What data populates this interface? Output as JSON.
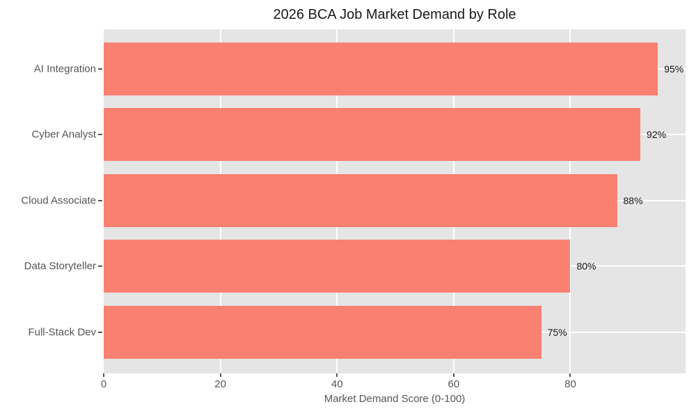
{
  "chart_data": {
    "type": "bar",
    "orientation": "horizontal",
    "title": "2026 BCA Job Market Demand by Role",
    "categories": [
      "AI Integration",
      "Cyber Analyst",
      "Cloud Associate",
      "Data Storyteller",
      "Full-Stack Dev"
    ],
    "values": [
      95,
      92,
      88,
      80,
      75
    ],
    "bar_labels": [
      "95%",
      "92%",
      "88%",
      "80%",
      "75%"
    ],
    "xlabel": "Market Demand Score (0-100)",
    "x_ticks": [
      0,
      20,
      40,
      60,
      80
    ],
    "xlim": [
      0,
      99.75
    ],
    "grid": true,
    "legend_position": "none",
    "colors": {
      "bar": "#FA8072",
      "plot_bg": "#E5E5E5",
      "figure_bg": "#FFFFFF",
      "gridline": "#FFFFFF",
      "tick_text": "#555555",
      "title_text": "#1A1A1A",
      "bar_label_text": "#111111"
    }
  }
}
